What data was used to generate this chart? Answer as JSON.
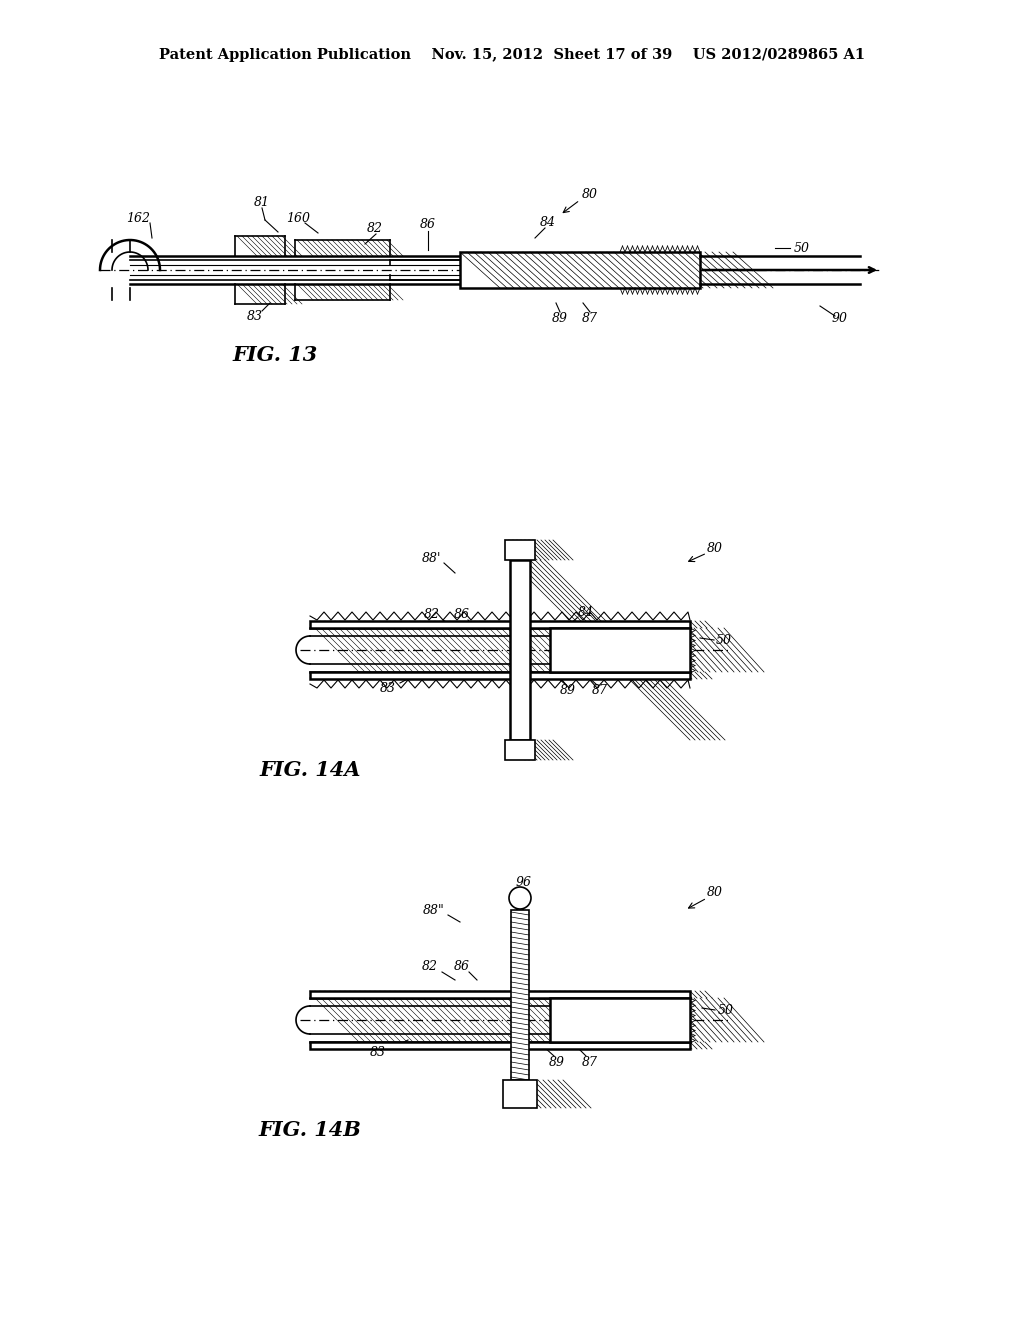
{
  "bg_color": "#ffffff",
  "header_text": "Patent Application Publication    Nov. 15, 2012  Sheet 17 of 39    US 2012/0289865 A1",
  "header_fontsize": 10.5,
  "fig13_label": "FIG. 13",
  "fig14a_label": "FIG. 14A",
  "fig14b_label": "FIG. 14B",
  "line_color": "#000000",
  "label_fontsize": 9,
  "fig_label_fontsize": 15
}
